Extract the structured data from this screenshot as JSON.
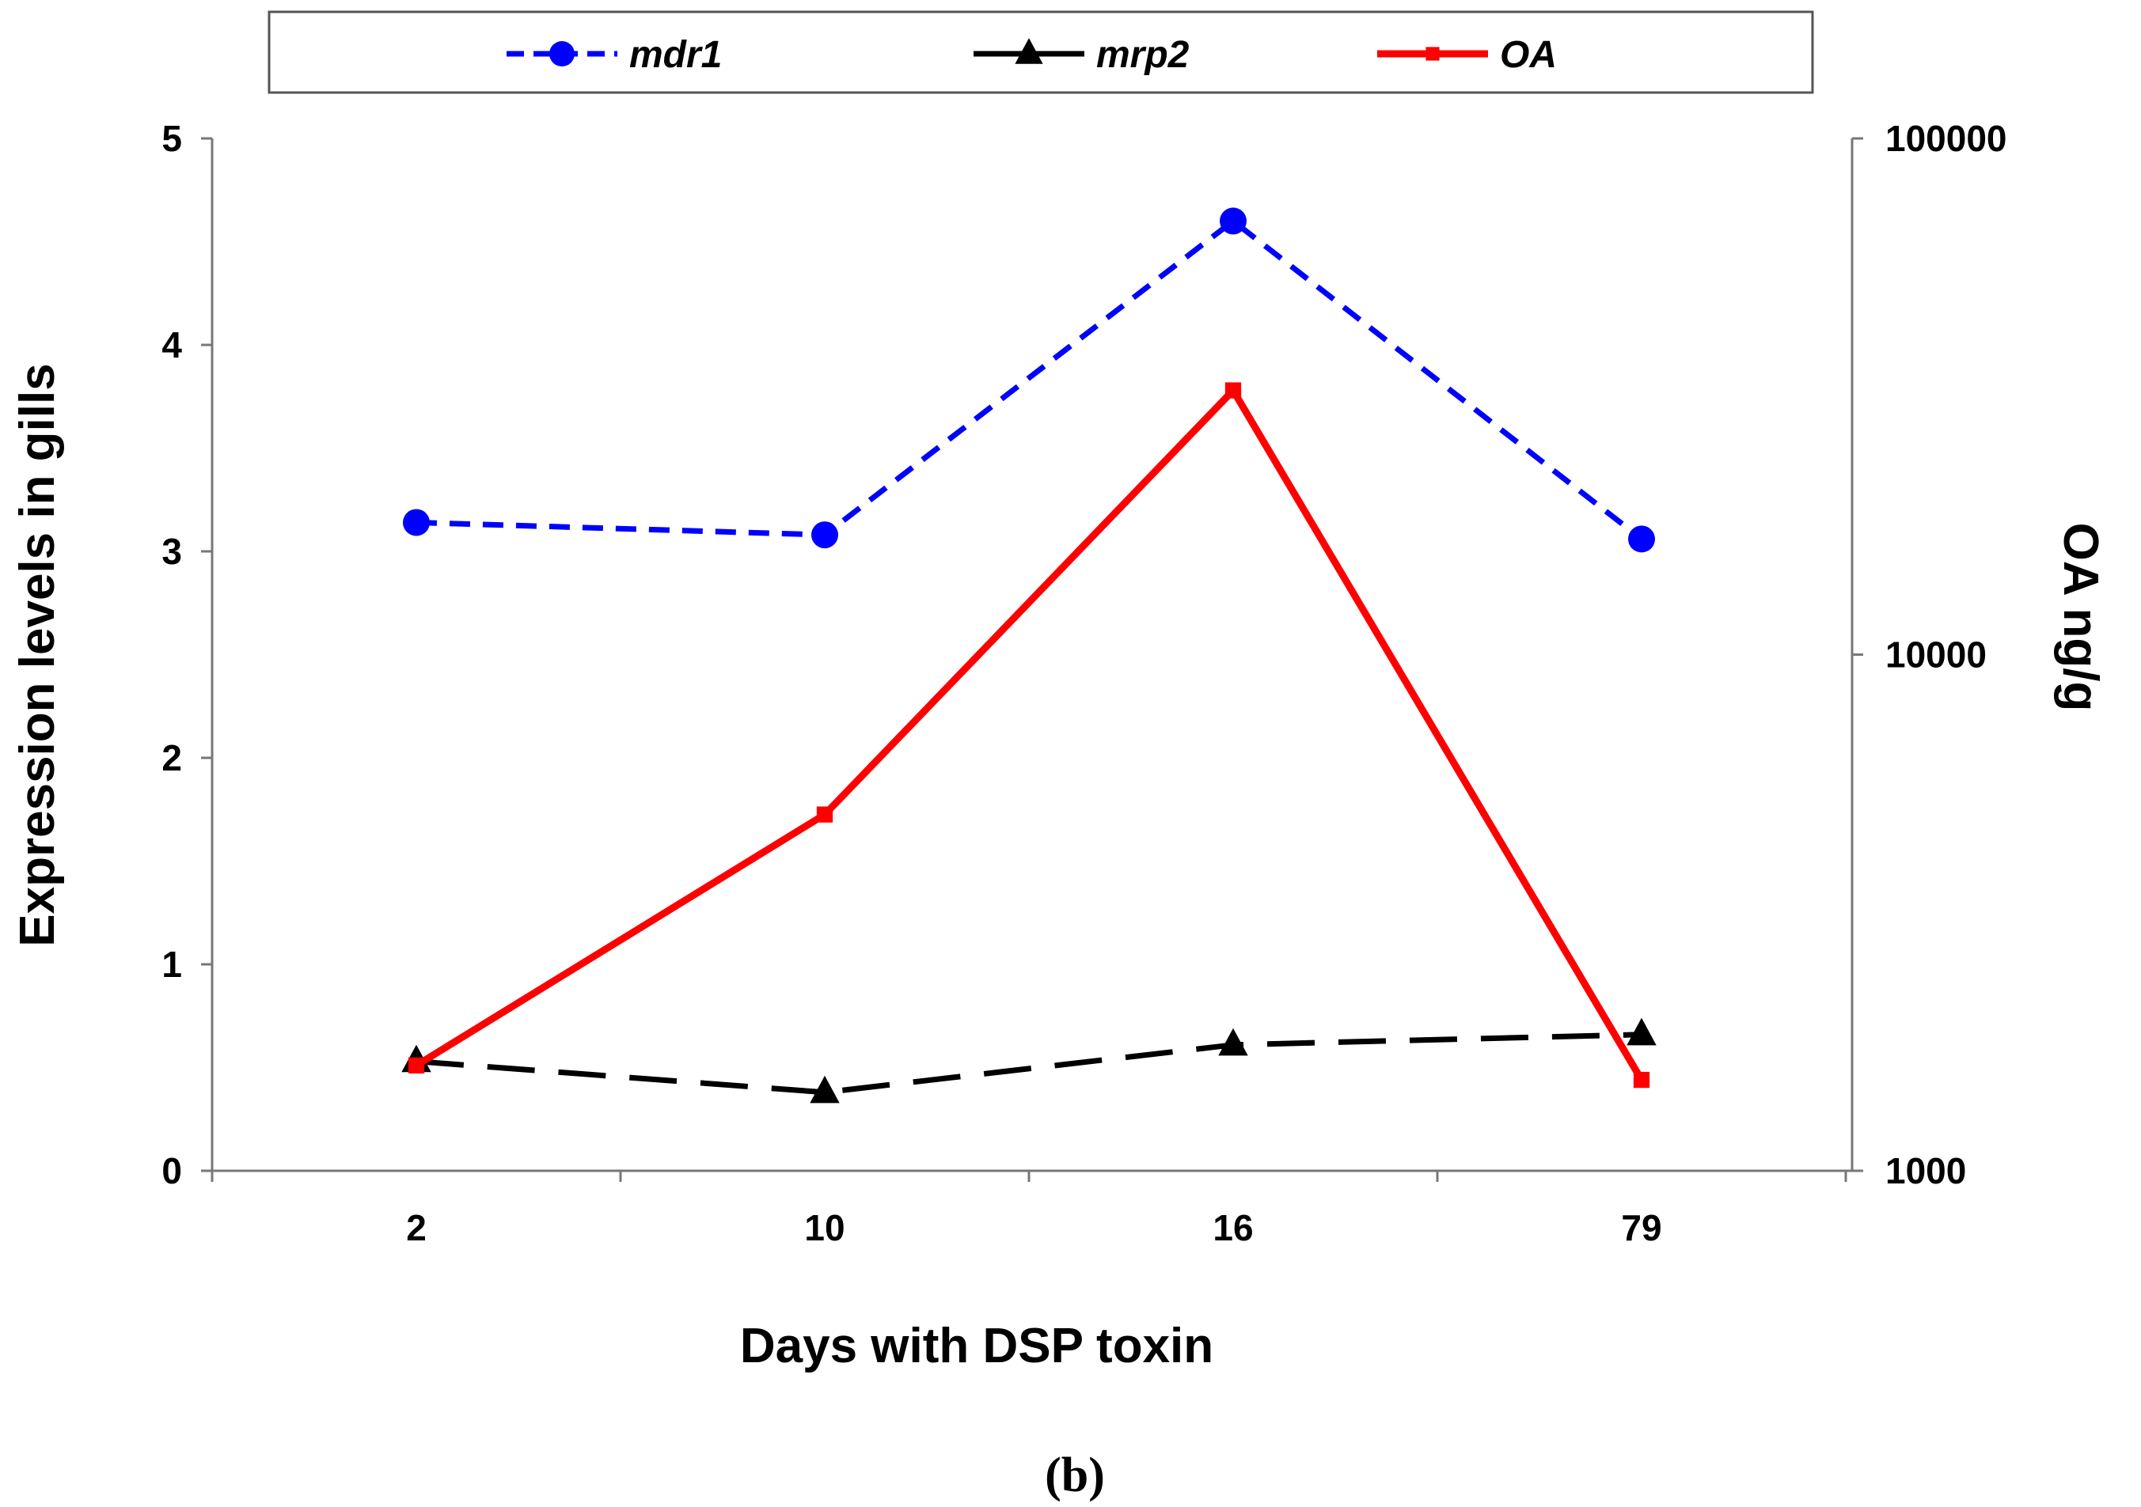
{
  "chart_data": {
    "type": "line",
    "categories": [
      "2",
      "10",
      "16",
      "79"
    ],
    "xlabel": "Days with DSP toxin",
    "ylabel": "Expression levels in gills",
    "y2label": "OA ng/g",
    "ylim": [
      0,
      5
    ],
    "yticks": [
      "0",
      "1",
      "2",
      "3",
      "4",
      "5"
    ],
    "y2lim": [
      1000,
      100000
    ],
    "y2scale": "log",
    "y2ticks": [
      "1000",
      "10000",
      "100000"
    ],
    "legend_position": "top",
    "grid": false,
    "series": [
      {
        "name": "mdr1",
        "axis": "left",
        "values": [
          3.14,
          3.08,
          4.6,
          3.06
        ],
        "color": "#0000ff",
        "style": "dashed",
        "marker": "circle"
      },
      {
        "name": "mrp2",
        "axis": "left",
        "values": [
          0.53,
          0.38,
          0.61,
          0.66
        ],
        "color": "#000000",
        "style": "long-dash",
        "marker": "triangle"
      },
      {
        "name": "OA",
        "axis": "right",
        "values": [
          1600,
          4900,
          32500,
          1500
        ],
        "color": "#ff0000",
        "style": "solid",
        "marker": "square"
      }
    ]
  },
  "caption": "(b)"
}
